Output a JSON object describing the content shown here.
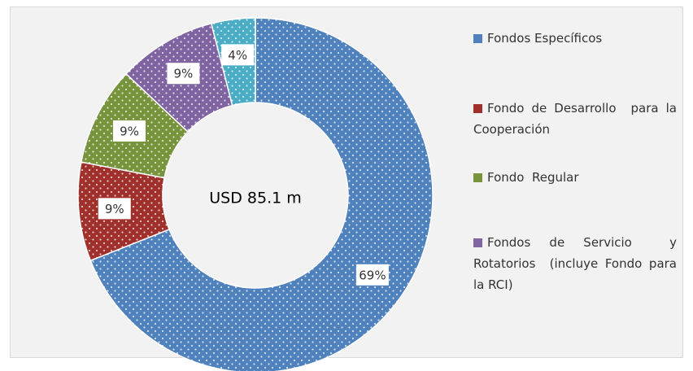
{
  "chart_data": {
    "type": "donut",
    "annotation": "USD 85.1 m",
    "categories": [
      "Fondos Específicos",
      "Fondo de Desarrollo  para la Cooperación",
      "Fondo  Regular",
      "Fondos de Servicio  y Rotatorios  (incluye Fondo para la RCI)",
      null
    ],
    "values": [
      69,
      9,
      9,
      9,
      4
    ],
    "value_labels": [
      "69%",
      "9%",
      "9%",
      "9%",
      "4%"
    ],
    "colors": [
      "#4f81bd",
      "#a0302c",
      "#77933c",
      "#8064a2",
      "#4bacc6"
    ]
  }
}
